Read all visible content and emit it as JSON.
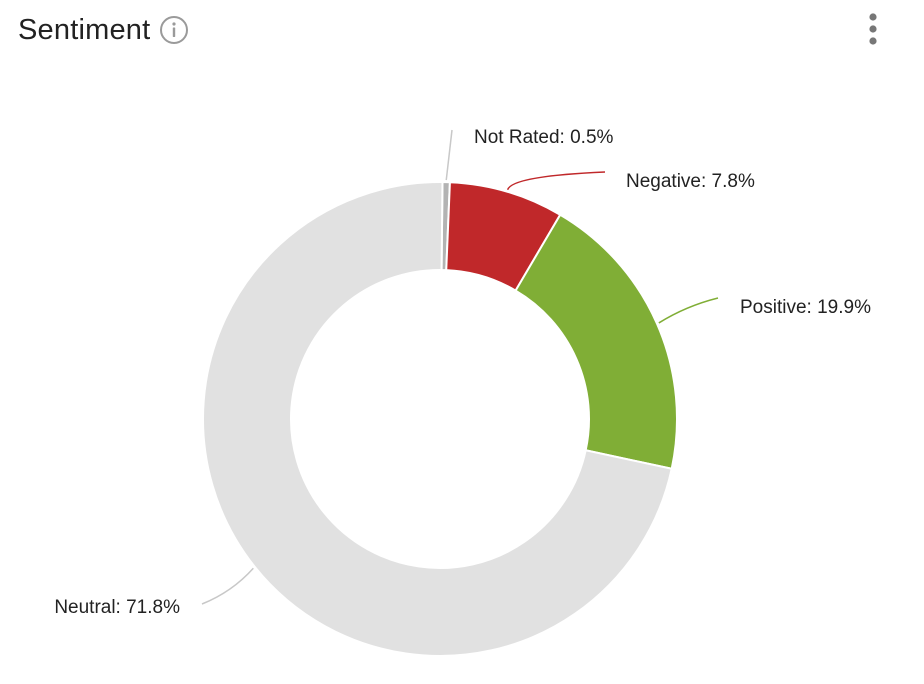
{
  "header": {
    "title": "Sentiment",
    "info_icon": "info-icon",
    "menu_icon": "vertical-dots-icon"
  },
  "chart_data": {
    "type": "pie",
    "donut": true,
    "categories": [
      "Not Rated",
      "Negative",
      "Positive",
      "Neutral"
    ],
    "values": [
      0.5,
      7.8,
      19.9,
      71.8
    ],
    "labels": [
      "Not Rated: 0.5%",
      "Negative: 7.8%",
      "Positive: 19.9%",
      "Neutral: 71.8%"
    ],
    "colors": [
      "#b3b3b3",
      "#c0282a",
      "#80ae36",
      "#e1e1e1"
    ],
    "title": "Sentiment"
  }
}
